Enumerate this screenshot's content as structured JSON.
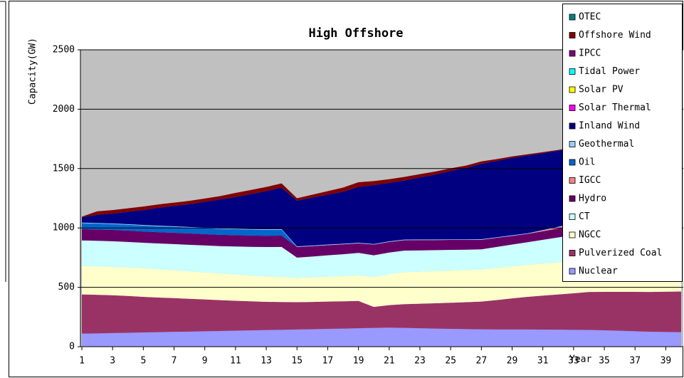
{
  "chart_data": {
    "type": "stacked_area",
    "title": "High Offshore",
    "y_label": "Capacity(GW)",
    "x_label": "Year",
    "x": [
      1,
      2,
      3,
      4,
      5,
      6,
      7,
      8,
      9,
      10,
      11,
      12,
      13,
      14,
      15,
      16,
      17,
      18,
      19,
      20,
      21,
      22,
      23,
      24,
      25,
      26,
      27,
      28,
      29,
      30,
      31,
      32,
      33,
      34,
      35,
      36,
      37,
      38,
      39,
      40
    ],
    "xlim": [
      1,
      40
    ],
    "xticks": [
      1,
      3,
      5,
      7,
      9,
      11,
      13,
      15,
      17,
      19,
      21,
      23,
      25,
      27,
      29,
      31,
      33,
      35,
      37,
      39
    ],
    "ylim": [
      0,
      2500
    ],
    "yticks": [
      0,
      500,
      1000,
      1500,
      2000,
      2500
    ],
    "grid": true,
    "legend": "right",
    "series": [
      {
        "name": "Nuclear",
        "color": "#9999ff",
        "values": [
          110,
          112,
          115,
          117,
          120,
          122,
          125,
          127,
          130,
          132,
          135,
          137,
          140,
          142,
          145,
          147,
          150,
          152,
          155,
          158,
          160,
          158,
          155,
          152,
          150,
          148,
          146,
          145,
          145,
          145,
          144,
          143,
          142,
          141,
          138,
          134,
          130,
          126,
          124,
          122
        ]
      },
      {
        "name": "Pulverized Coal",
        "color": "#993366",
        "values": [
          330,
          325,
          318,
          310,
          300,
          292,
          284,
          276,
          268,
          260,
          252,
          245,
          238,
          234,
          230,
          230,
          230,
          230,
          230,
          177,
          190,
          200,
          207,
          214,
          220,
          227,
          234,
          248,
          262,
          275,
          286,
          297,
          308,
          320,
          324,
          328,
          332,
          335,
          339,
          343
        ]
      },
      {
        "name": "NGCC",
        "color": "#ffffcc",
        "values": [
          240,
          240,
          240,
          240,
          240,
          237,
          234,
          231,
          228,
          225,
          221,
          217,
          213,
          209,
          205,
          207,
          210,
          212,
          215,
          250,
          260,
          270,
          270,
          270,
          270,
          270,
          270,
          270,
          270,
          270,
          270,
          270,
          270,
          270,
          269,
          268,
          266,
          265,
          272,
          280
        ]
      },
      {
        "name": "CT",
        "color": "#ccffff",
        "values": [
          215,
          215,
          215,
          215,
          215,
          218,
          221,
          224,
          227,
          230,
          236,
          242,
          248,
          255,
          170,
          175,
          180,
          185,
          190,
          185,
          183,
          181,
          179,
          177,
          175,
          172,
          170,
          177,
          183,
          190,
          200,
          210,
          220,
          230,
          236,
          242,
          248,
          253,
          259,
          265
        ]
      },
      {
        "name": "Hydro",
        "color": "#660066",
        "values": [
          95,
          95,
          95,
          95,
          95,
          95,
          95,
          95,
          95,
          95,
          95,
          95,
          95,
          95,
          90,
          88,
          85,
          83,
          80,
          90,
          89,
          88,
          87,
          85,
          84,
          82,
          80,
          77,
          73,
          70,
          72,
          75,
          77,
          80,
          79,
          78,
          77,
          76,
          76,
          75
        ]
      },
      {
        "name": "IGCC",
        "color": "#ff8080",
        "values": [
          0,
          0,
          0,
          0,
          0,
          0,
          0,
          0,
          0,
          0,
          0,
          0,
          0,
          0,
          0,
          0,
          0,
          0,
          0,
          0,
          0,
          0,
          0,
          0,
          0,
          0,
          0,
          0,
          0,
          0,
          5,
          10,
          15,
          20,
          22,
          24,
          25,
          27,
          28,
          30
        ]
      },
      {
        "name": "Oil",
        "color": "#0066cc",
        "values": [
          50,
          50,
          50,
          50,
          50,
          50,
          50,
          50,
          50,
          50,
          50,
          50,
          50,
          50,
          0,
          0,
          0,
          0,
          0,
          0,
          0,
          0,
          0,
          0,
          0,
          0,
          0,
          0,
          0,
          0,
          0,
          0,
          0,
          0,
          0,
          0,
          0,
          0,
          0,
          0
        ]
      },
      {
        "name": "Geothermal",
        "color": "#99ccff",
        "values": [
          5,
          5,
          5,
          5,
          5,
          5,
          5,
          5,
          5,
          5,
          5,
          5,
          5,
          5,
          5,
          5,
          5,
          5,
          5,
          5,
          5,
          5,
          5,
          5,
          5,
          5,
          5,
          5,
          5,
          5,
          5,
          5,
          5,
          5,
          5,
          5,
          5,
          5,
          5,
          5
        ]
      },
      {
        "name": "Inland Wind",
        "color": "#000080",
        "values": [
          45,
          68,
          82,
          103,
          125,
          151,
          171,
          192,
          217,
          243,
          266,
          294,
          321,
          350,
          385,
          403,
          420,
          438,
          470,
          495,
          493,
          498,
          522,
          547,
          576,
          601,
          635,
          643,
          652,
          655,
          648,
          640,
          638,
          634,
          635,
          636,
          642,
          648,
          639,
          630
        ]
      },
      {
        "name": "Solar Thermal",
        "color": "#ff00ff",
        "values": [
          0,
          0,
          0,
          0,
          0,
          0,
          0,
          0,
          0,
          0,
          0,
          0,
          0,
          0,
          0,
          0,
          0,
          0,
          0,
          0,
          0,
          0,
          0,
          0,
          0,
          0,
          0,
          0,
          0,
          0,
          0,
          0,
          0,
          0,
          0,
          0,
          0,
          0,
          0,
          0
        ]
      },
      {
        "name": "Solar PV",
        "color": "#ffff00",
        "values": [
          0,
          0,
          0,
          0,
          0,
          0,
          0,
          0,
          0,
          0,
          0,
          0,
          0,
          0,
          0,
          0,
          0,
          0,
          0,
          0,
          0,
          0,
          0,
          0,
          0,
          0,
          0,
          0,
          0,
          0,
          0,
          0,
          0,
          0,
          0,
          0,
          0,
          0,
          0,
          0
        ]
      },
      {
        "name": "Tidal Power",
        "color": "#00ffff",
        "values": [
          0,
          0,
          0,
          0,
          0,
          0,
          0,
          0,
          0,
          0,
          0,
          0,
          0,
          0,
          0,
          0,
          0,
          0,
          0,
          0,
          0,
          0,
          0,
          0,
          0,
          0,
          0,
          0,
          0,
          0,
          0,
          0,
          0,
          0,
          0,
          0,
          0,
          0,
          0,
          0
        ]
      },
      {
        "name": "IPCC",
        "color": "#800080",
        "values": [
          0,
          0,
          0,
          0,
          0,
          0,
          0,
          0,
          0,
          0,
          0,
          0,
          0,
          0,
          0,
          0,
          0,
          0,
          0,
          0,
          0,
          0,
          0,
          0,
          0,
          0,
          0,
          0,
          0,
          0,
          0,
          0,
          0,
          0,
          0,
          0,
          0,
          0,
          0,
          0
        ]
      },
      {
        "name": "Offshore Wind",
        "color": "#800000",
        "values": [
          5,
          30,
          30,
          30,
          30,
          28,
          28,
          28,
          28,
          28,
          35,
          35,
          35,
          35,
          20,
          25,
          30,
          35,
          40,
          35,
          30,
          30,
          28,
          25,
          22,
          20,
          20,
          15,
          12,
          10,
          8,
          7,
          6,
          5,
          30,
          60,
          90,
          130,
          165,
          200
        ]
      },
      {
        "name": "OTEC",
        "color": "#008080",
        "values": [
          0,
          0,
          0,
          0,
          0,
          0,
          0,
          0,
          0,
          0,
          0,
          0,
          0,
          0,
          0,
          0,
          0,
          0,
          0,
          0,
          0,
          0,
          0,
          0,
          0,
          0,
          0,
          0,
          0,
          0,
          0,
          0,
          0,
          0,
          0,
          0,
          0,
          0,
          0,
          0
        ]
      }
    ]
  }
}
